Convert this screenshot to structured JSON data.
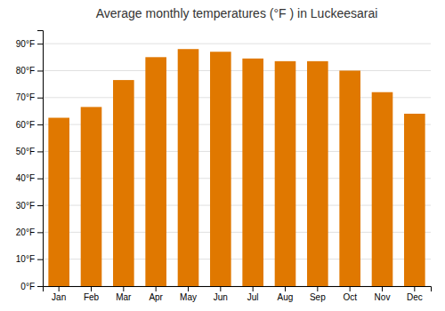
{
  "chart_data": {
    "type": "bar",
    "title": "Average monthly temperatures (°F ) in Luckeesarai",
    "categories": [
      "Jan",
      "Feb",
      "Mar",
      "Apr",
      "May",
      "Jun",
      "Jul",
      "Aug",
      "Sep",
      "Oct",
      "Nov",
      "Dec"
    ],
    "values": [
      62.5,
      66.5,
      76.5,
      85,
      88,
      87,
      84.5,
      83.5,
      83.5,
      80,
      72,
      64
    ],
    "color": "#E07800",
    "ylim": [
      0,
      95
    ],
    "yticks": [
      {
        "value": 0,
        "label": "0°F"
      },
      {
        "value": 10,
        "label": "10°F"
      },
      {
        "value": 20,
        "label": "20°F"
      },
      {
        "value": 30,
        "label": "30°F"
      },
      {
        "value": 40,
        "label": "40°F"
      },
      {
        "value": 50,
        "label": "50°F"
      },
      {
        "value": 60,
        "label": "60°F"
      },
      {
        "value": 70,
        "label": "70°F"
      },
      {
        "value": 80,
        "label": "80°F"
      },
      {
        "value": 90,
        "label": "90°F"
      }
    ],
    "grid": true
  }
}
